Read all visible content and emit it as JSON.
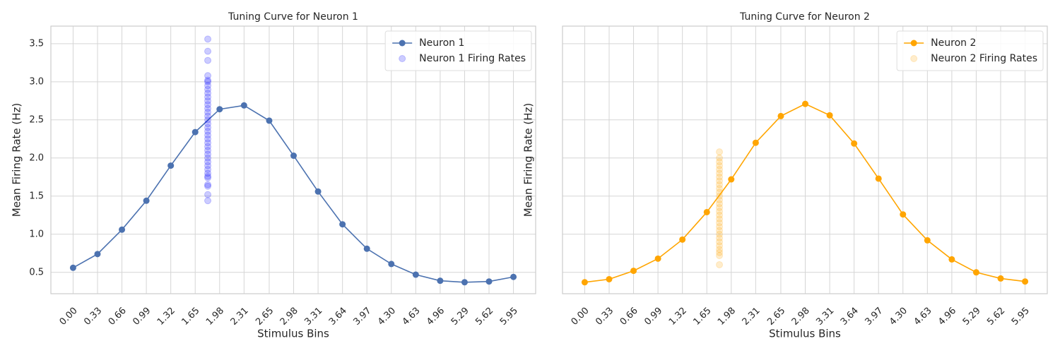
{
  "chart_data": [
    {
      "type": "line",
      "title": "Tuning Curve for Neuron 1",
      "xlabel": "Stimulus Bins",
      "ylabel": "Mean Firing Rate (Hz)",
      "xlim": [
        -0.3,
        6.25
      ],
      "ylim": [
        0.22,
        3.73
      ],
      "grid": true,
      "legend": "upper right",
      "show_ytick_labels": true,
      "xticks": [
        {
          "value": 0,
          "label": "0.00"
        },
        0.33,
        0.66,
        0.99,
        1.32,
        1.65,
        1.98,
        2.31,
        2.65,
        2.98,
        3.31,
        3.64,
        3.97,
        {
          "value": 4.3,
          "label": "4.30"
        },
        4.63,
        4.96,
        5.29,
        5.62,
        5.95
      ],
      "yticks": [
        0.5,
        {
          "value": 1,
          "label": "1.0"
        },
        1.5,
        {
          "value": 2,
          "label": "2.0"
        },
        2.5,
        {
          "value": 3,
          "label": "3.0"
        },
        3.5
      ],
      "series": [
        {
          "name": "Neuron 1",
          "kind": "line",
          "color": "#4c72b0",
          "x": [
            0,
            0.33,
            0.66,
            0.99,
            1.32,
            1.65,
            1.98,
            2.31,
            2.65,
            2.98,
            3.31,
            3.64,
            3.97,
            4.3,
            4.63,
            4.96,
            5.29,
            5.62,
            5.95
          ],
          "values": [
            0.56,
            0.74,
            1.06,
            1.44,
            1.9,
            2.34,
            2.64,
            2.69,
            2.49,
            2.03,
            1.56,
            1.13,
            0.81,
            0.61,
            0.47,
            0.39,
            0.37,
            0.38,
            0.44
          ]
        },
        {
          "name": "Neuron 1 Firing Rates",
          "kind": "scatter",
          "color": "#0000ff",
          "alpha": 0.2,
          "x": [
            1.82,
            1.82,
            1.82,
            1.82,
            1.82,
            1.82,
            1.82,
            1.82,
            1.82,
            1.82,
            1.82,
            1.82,
            1.82,
            1.82,
            1.82,
            1.82,
            1.82,
            1.82,
            1.82,
            1.82,
            1.82,
            1.82,
            1.82,
            1.82,
            1.82,
            1.82,
            1.82,
            1.82,
            1.82,
            1.82,
            1.82,
            1.82,
            1.82,
            1.82,
            1.82,
            1.82
          ],
          "values": [
            1.44,
            1.52,
            1.63,
            1.65,
            1.74,
            1.76,
            1.8,
            1.85,
            1.9,
            1.95,
            2.0,
            2.05,
            2.1,
            2.15,
            2.2,
            2.25,
            2.3,
            2.35,
            2.4,
            2.45,
            2.5,
            2.55,
            2.6,
            2.65,
            2.7,
            2.75,
            2.8,
            2.85,
            2.9,
            2.95,
            3.0,
            3.02,
            3.08,
            3.28,
            3.4,
            3.56
          ]
        }
      ]
    },
    {
      "type": "line",
      "title": "Tuning Curve for Neuron 2",
      "xlabel": "Stimulus Bins",
      "ylabel": "Mean Firing Rate (Hz)",
      "xlim": [
        -0.3,
        6.25
      ],
      "ylim": [
        0.22,
        3.73
      ],
      "grid": true,
      "legend": "upper right",
      "show_ytick_labels": false,
      "xticks": [
        {
          "value": 0,
          "label": "0.00"
        },
        0.33,
        0.66,
        0.99,
        1.32,
        1.65,
        1.98,
        2.31,
        2.65,
        2.98,
        3.31,
        3.64,
        3.97,
        {
          "value": 4.3,
          "label": "4.30"
        },
        4.63,
        4.96,
        5.29,
        5.62,
        5.95
      ],
      "yticks": [
        0.5,
        1,
        1.5,
        2,
        2.5,
        3,
        3.5
      ],
      "series": [
        {
          "name": "Neuron 2",
          "kind": "line",
          "color": "#ffa500",
          "x": [
            0,
            0.33,
            0.66,
            0.99,
            1.32,
            1.65,
            1.98,
            2.31,
            2.65,
            2.98,
            3.31,
            3.64,
            3.97,
            4.3,
            4.63,
            4.96,
            5.29,
            5.62,
            5.95
          ],
          "values": [
            0.37,
            0.41,
            0.52,
            0.68,
            0.93,
            1.29,
            1.72,
            2.2,
            2.55,
            2.71,
            2.56,
            2.19,
            1.73,
            1.26,
            0.92,
            0.67,
            0.5,
            0.42,
            0.38
          ]
        },
        {
          "name": "Neuron 2 Firing Rates",
          "kind": "scatter",
          "color": "#ffa500",
          "alpha": 0.2,
          "x": [
            1.82,
            1.82,
            1.82,
            1.82,
            1.82,
            1.82,
            1.82,
            1.82,
            1.82,
            1.82,
            1.82,
            1.82,
            1.82,
            1.82,
            1.82,
            1.82,
            1.82,
            1.82,
            1.82,
            1.82,
            1.82,
            1.82,
            1.82,
            1.82,
            1.82,
            1.82,
            1.82,
            1.82,
            1.82
          ],
          "values": [
            0.6,
            0.72,
            0.76,
            0.8,
            0.85,
            0.9,
            0.95,
            1.0,
            1.05,
            1.1,
            1.15,
            1.2,
            1.25,
            1.3,
            1.35,
            1.4,
            1.45,
            1.5,
            1.55,
            1.6,
            1.65,
            1.7,
            1.75,
            1.8,
            1.85,
            1.9,
            1.95,
            2.0,
            2.08
          ]
        }
      ]
    }
  ]
}
